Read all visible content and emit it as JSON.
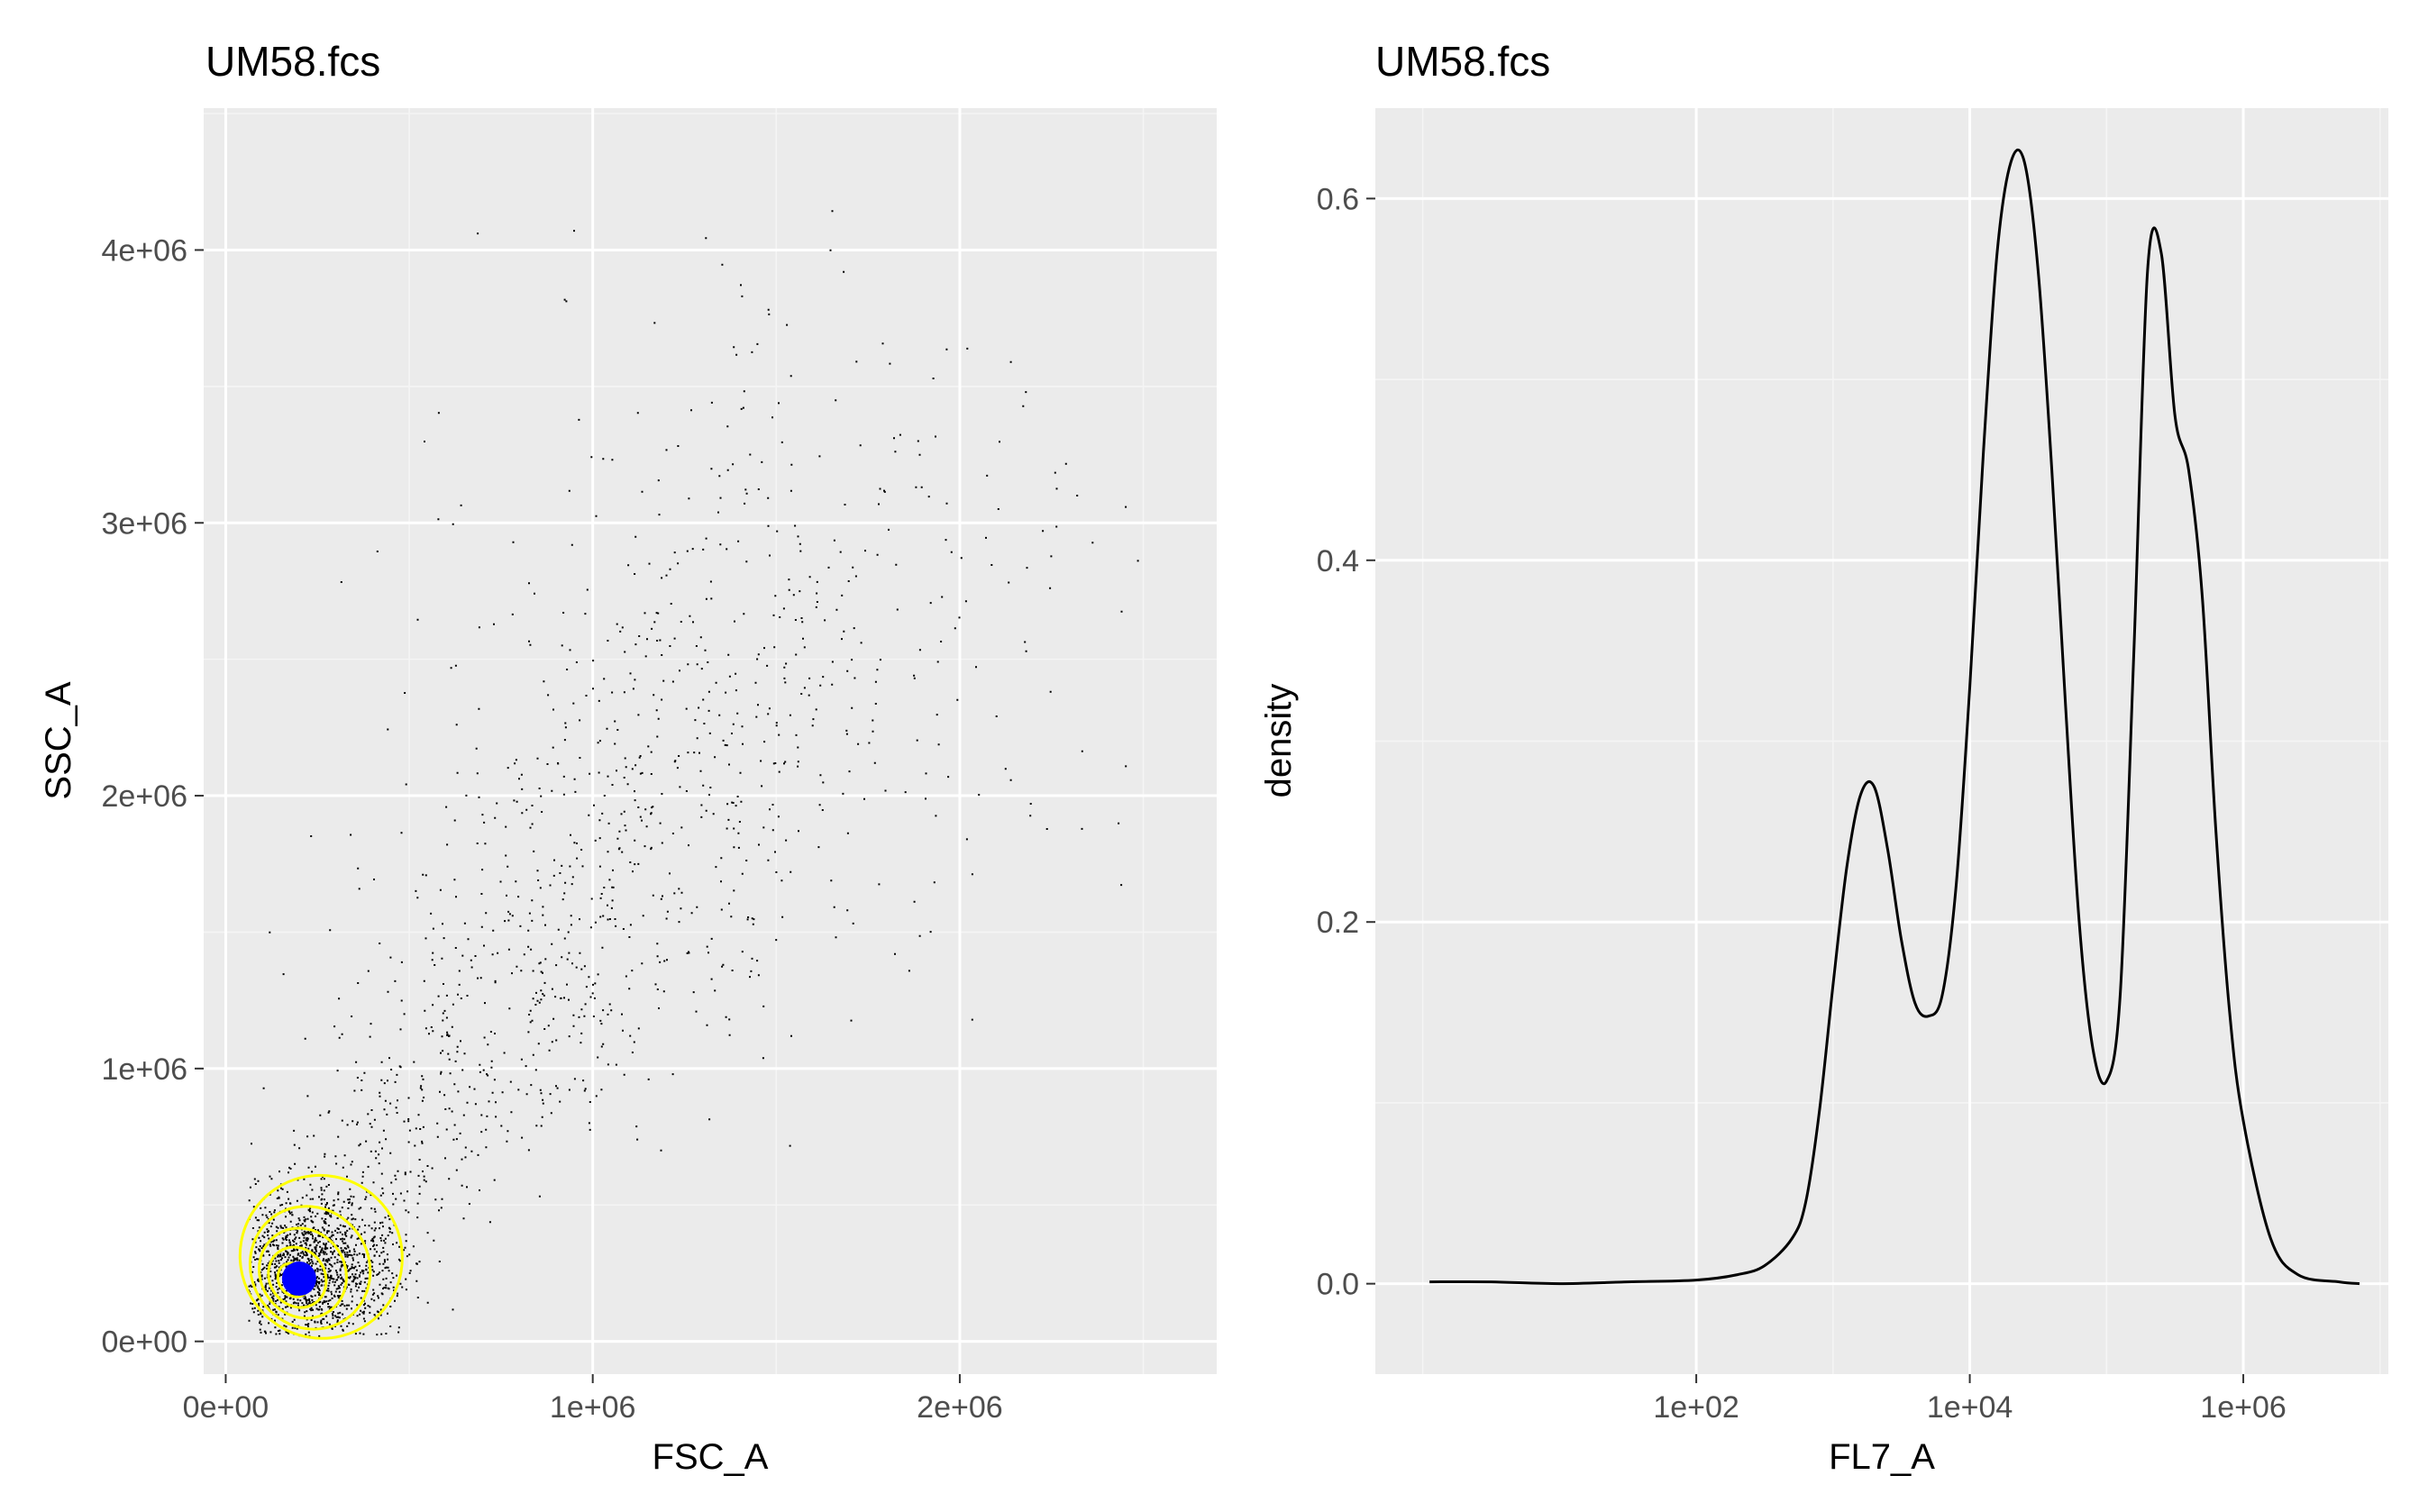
{
  "chart_data": [
    {
      "type": "scatter",
      "title": "UM58.fcs",
      "xlabel": "FSC_A",
      "ylabel": "SSC_A",
      "xlim": [
        -60000,
        2700000
      ],
      "ylim": [
        -120000,
        4520000
      ],
      "x_ticks": [
        0,
        1000000,
        2000000
      ],
      "x_tick_labels": [
        "0e+00",
        "1e+06",
        "2e+06"
      ],
      "y_ticks": [
        0,
        1000000,
        2000000,
        3000000,
        4000000
      ],
      "y_tick_labels": [
        "0e+00",
        "1e+06",
        "2e+06",
        "3e+06",
        "4e+06"
      ],
      "grid": true,
      "point_color": "#000000",
      "contour_color": "#ffff00",
      "contour_rings": [
        {
          "cx": 260000,
          "cy": 310000,
          "rx": 220000,
          "ry": 300000
        },
        {
          "cx": 230000,
          "cy": 270000,
          "rx": 160000,
          "ry": 230000
        },
        {
          "cx": 210000,
          "cy": 250000,
          "rx": 115000,
          "ry": 170000
        },
        {
          "cx": 195000,
          "cy": 235000,
          "rx": 75000,
          "ry": 115000
        },
        {
          "cx": 185000,
          "cy": 225000,
          "rx": 40000,
          "ry": 65000
        }
      ],
      "center_point": {
        "x": 200000,
        "y": 230000,
        "color": "#0000ff"
      },
      "sample_points": {
        "n": 4200,
        "seed": 58,
        "core_center": [
          220000,
          260000
        ],
        "core_spread": [
          120000,
          140000
        ],
        "tail_end": [
          1700000,
          3000000
        ],
        "x_max": 2600000,
        "y_max": 4400000
      }
    },
    {
      "type": "line",
      "title": "UM58.fcs",
      "xlabel": "FL7_A",
      "ylabel": "density",
      "x_scale": "log10",
      "xlim": [
        0.45,
        11500000
      ],
      "ylim": [
        -0.05,
        0.65
      ],
      "x_ticks": [
        100,
        10000,
        1000000
      ],
      "x_tick_labels": [
        "1e+02",
        "1e+04",
        "1e+06"
      ],
      "y_ticks": [
        0,
        0.2,
        0.4,
        0.6
      ],
      "y_tick_labels": [
        "0.0",
        "0.2",
        "0.4",
        "0.6"
      ],
      "grid": true,
      "line_color": "#000000",
      "series": [
        {
          "x": [
            1.12,
            3.16,
            10,
            31.6,
            100,
            200,
            316,
            501,
            631,
            794,
            1000,
            1259,
            1585,
            1995,
            2512,
            3162,
            3981,
            5012,
            6310,
            7943,
            10000,
            12589,
            15849,
            19953,
            25119,
            31623,
            39811,
            50119,
            63096,
            79433,
            100000,
            125893,
            158489,
            199526,
            251189,
            316228,
            398107,
            501187,
            630957,
            794328,
            1000000,
            1584893,
            2511886,
            5011872,
            7079458
          ],
          "y": [
            0.001,
            0.001,
            0.0,
            0.001,
            0.002,
            0.005,
            0.01,
            0.025,
            0.045,
            0.095,
            0.165,
            0.23,
            0.27,
            0.275,
            0.24,
            0.19,
            0.155,
            0.148,
            0.16,
            0.22,
            0.33,
            0.46,
            0.57,
            0.62,
            0.62,
            0.56,
            0.45,
            0.32,
            0.2,
            0.13,
            0.112,
            0.16,
            0.35,
            0.56,
            0.57,
            0.48,
            0.45,
            0.38,
            0.25,
            0.15,
            0.09,
            0.025,
            0.005,
            0.001,
            0.0
          ]
        }
      ]
    }
  ]
}
